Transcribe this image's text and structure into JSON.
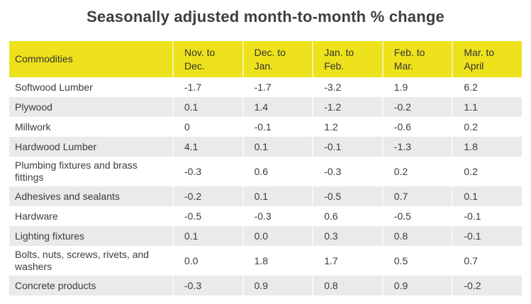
{
  "title": "Seasonally adjusted month-to-month % change",
  "colors": {
    "header_bg": "#ede21b",
    "row_bg": "#ffffff",
    "row_alt_bg": "#eaeaea",
    "title_text": "#3e3e3e",
    "cell_text": "#3c3c3c"
  },
  "table": {
    "columns": [
      "Commodities",
      "Nov. to\nDec.",
      "Dec. to\nJan.",
      "Jan. to\nFeb.",
      "Feb. to\nMar.",
      "Mar. to\nApril"
    ],
    "rows": [
      {
        "label": "Softwood Lumber",
        "values": [
          "-1.7",
          "-1.7",
          "-3.2",
          "1.9",
          "6.2"
        ]
      },
      {
        "label": "Plywood",
        "values": [
          "0.1",
          "1.4",
          "-1.2",
          "-0.2",
          "1.1"
        ]
      },
      {
        "label": "Millwork",
        "values": [
          "0",
          "-0.1",
          "1.2",
          "-0.6",
          "0.2"
        ]
      },
      {
        "label": "Hardwood Lumber",
        "values": [
          "4.1",
          "0.1",
          "-0.1",
          "-1.3",
          "1.8"
        ]
      },
      {
        "label": "Plumbing fixtures and brass fittings",
        "values": [
          "-0.3",
          "0.6",
          "-0.3",
          "0.2",
          "0.2"
        ]
      },
      {
        "label": "Adhesives and sealants",
        "values": [
          "-0.2",
          "0.1",
          "-0.5",
          "0.7",
          "0.1"
        ]
      },
      {
        "label": "Hardware",
        "values": [
          "-0.5",
          "-0.3",
          "0.6",
          "-0.5",
          "-0.1"
        ]
      },
      {
        "label": "Lighting fixtures",
        "values": [
          "0.1",
          "0.0",
          "0.3",
          "0.8",
          "-0.1"
        ]
      },
      {
        "label": "Bolts, nuts, screws, rivets, and washers",
        "values": [
          "0.0",
          "1.8",
          "1.7",
          "0.5",
          "0.7"
        ]
      },
      {
        "label": "Concrete products",
        "values": [
          "-0.3",
          "0.9",
          "0.8",
          "0.9",
          "-0.2"
        ]
      }
    ]
  },
  "chart_data": {
    "type": "table",
    "title": "Seasonally adjusted month-to-month % change",
    "categories": [
      "Nov. to Dec.",
      "Dec. to Jan.",
      "Jan. to Feb.",
      "Feb. to Mar.",
      "Mar. to April"
    ],
    "series": [
      {
        "name": "Softwood Lumber",
        "values": [
          -1.7,
          -1.7,
          -3.2,
          1.9,
          6.2
        ]
      },
      {
        "name": "Plywood",
        "values": [
          0.1,
          1.4,
          -1.2,
          -0.2,
          1.1
        ]
      },
      {
        "name": "Millwork",
        "values": [
          0,
          -0.1,
          1.2,
          -0.6,
          0.2
        ]
      },
      {
        "name": "Hardwood Lumber",
        "values": [
          4.1,
          0.1,
          -0.1,
          -1.3,
          1.8
        ]
      },
      {
        "name": "Plumbing fixtures and brass fittings",
        "values": [
          -0.3,
          0.6,
          -0.3,
          0.2,
          0.2
        ]
      },
      {
        "name": "Adhesives and sealants",
        "values": [
          -0.2,
          0.1,
          -0.5,
          0.7,
          0.1
        ]
      },
      {
        "name": "Hardware",
        "values": [
          -0.5,
          -0.3,
          0.6,
          -0.5,
          -0.1
        ]
      },
      {
        "name": "Lighting fixtures",
        "values": [
          0.1,
          0.0,
          0.3,
          0.8,
          -0.1
        ]
      },
      {
        "name": "Bolts, nuts, screws, rivets, and washers",
        "values": [
          0.0,
          1.8,
          1.7,
          0.5,
          0.7
        ]
      },
      {
        "name": "Concrete products",
        "values": [
          -0.3,
          0.9,
          0.8,
          0.9,
          -0.2
        ]
      }
    ]
  }
}
